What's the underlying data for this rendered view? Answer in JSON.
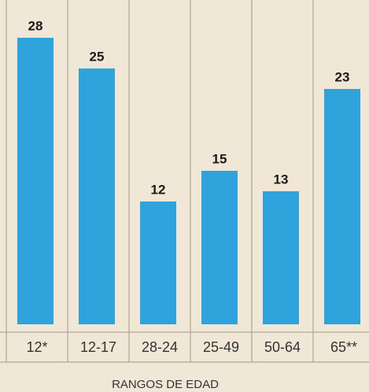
{
  "chart_data": {
    "type": "bar",
    "x_label": "RANGOS DE EDAD",
    "categories": [
      "12*",
      "12-17",
      "28-24",
      "25-49",
      "50-64",
      "65**"
    ],
    "values": [
      28,
      25,
      12,
      15,
      13,
      23
    ],
    "color": "#2ea3dc",
    "ylim": [
      0,
      31
    ]
  }
}
